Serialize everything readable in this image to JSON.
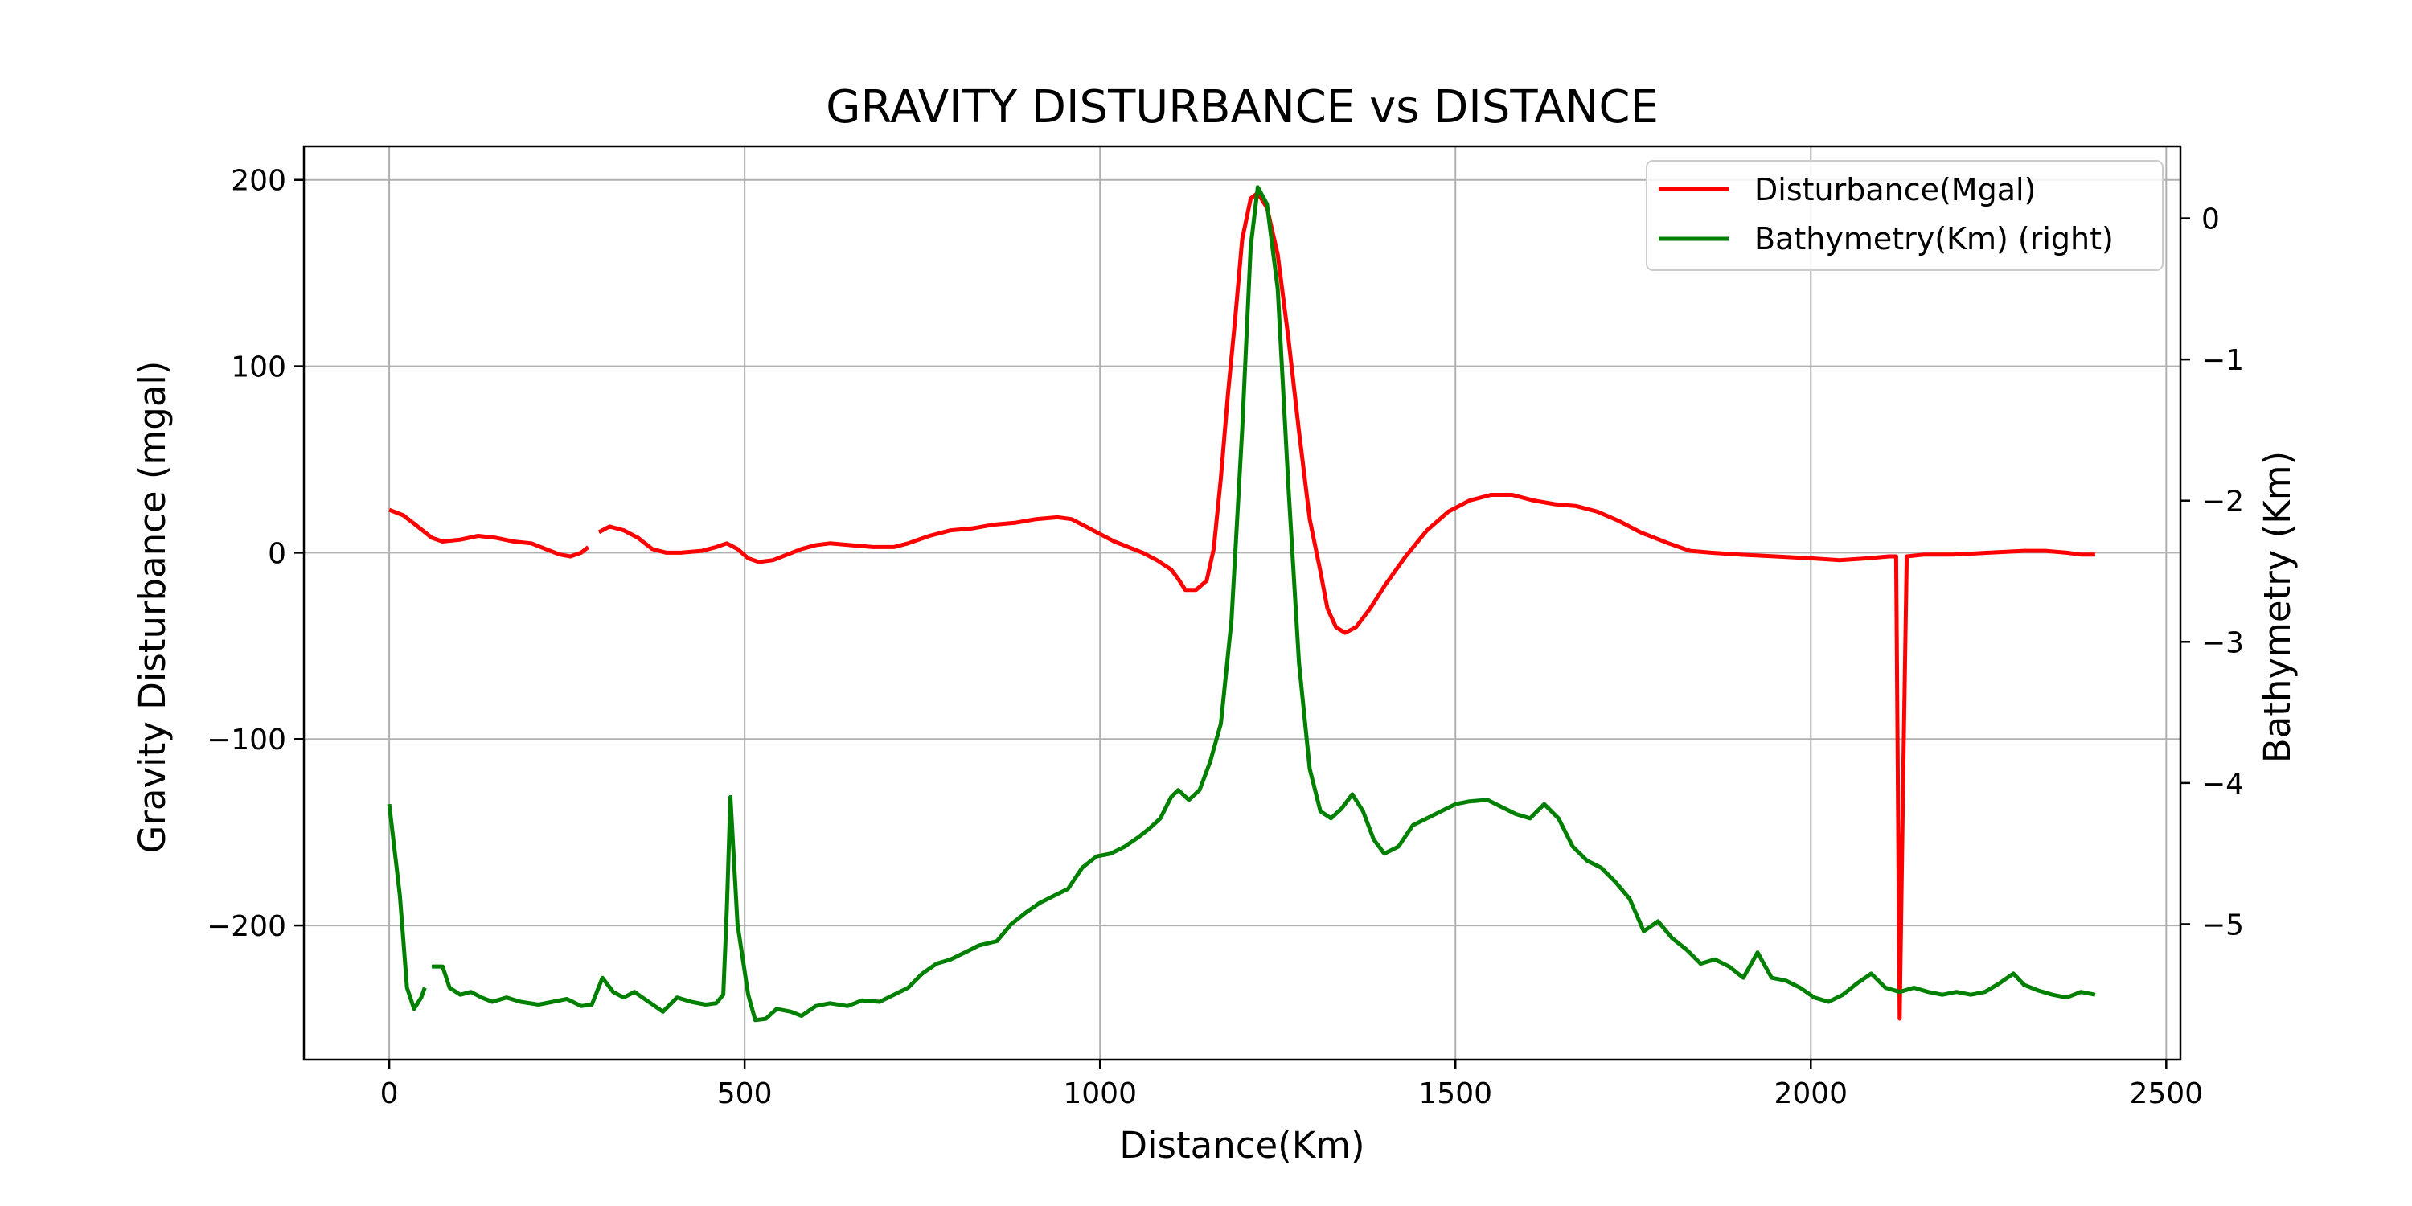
{
  "chart_data": {
    "type": "line",
    "title": "GRAVITY DISTURBANCE vs DISTANCE",
    "xlabel": "Distance(Km)",
    "ylabel": "Gravity Disturbance (mgal)",
    "y2label": "Bathymetry (Km)",
    "xlim": [
      -120,
      2520
    ],
    "ylim": [
      -272,
      218
    ],
    "y2lim": [
      -5.96,
      0.51
    ],
    "xticks": [
      0,
      500,
      1000,
      1500,
      2000,
      2500
    ],
    "yticks": [
      -200,
      -100,
      0,
      100,
      200
    ],
    "y2ticks": [
      -5,
      -4,
      -3,
      -2,
      -1,
      0
    ],
    "grid": true,
    "legend": "top-right",
    "series": [
      {
        "name": "Disturbance(Mgal)",
        "axis": "left",
        "color": "#ff0000",
        "points": [
          [
            0,
            23
          ],
          [
            20,
            20
          ],
          [
            40,
            14
          ],
          [
            60,
            8
          ],
          [
            75,
            6
          ],
          [
            100,
            7
          ],
          [
            125,
            9
          ],
          [
            150,
            8
          ],
          [
            175,
            6
          ],
          [
            200,
            5
          ],
          [
            220,
            2
          ],
          [
            240,
            -1
          ],
          [
            255,
            -2
          ],
          [
            270,
            0
          ],
          [
            280,
            3
          ],
          [
            285,
            null
          ],
          [
            295,
            11
          ],
          [
            310,
            14
          ],
          [
            330,
            12
          ],
          [
            350,
            8
          ],
          [
            370,
            2
          ],
          [
            390,
            0
          ],
          [
            410,
            0
          ],
          [
            440,
            1
          ],
          [
            460,
            3
          ],
          [
            475,
            5
          ],
          [
            490,
            2
          ],
          [
            505,
            -3
          ],
          [
            520,
            -5
          ],
          [
            540,
            -4
          ],
          [
            560,
            -1
          ],
          [
            580,
            2
          ],
          [
            600,
            4
          ],
          [
            620,
            5
          ],
          [
            650,
            4
          ],
          [
            680,
            3
          ],
          [
            710,
            3
          ],
          [
            730,
            5
          ],
          [
            760,
            9
          ],
          [
            790,
            12
          ],
          [
            820,
            13
          ],
          [
            850,
            15
          ],
          [
            880,
            16
          ],
          [
            910,
            18
          ],
          [
            940,
            19
          ],
          [
            960,
            18
          ],
          [
            980,
            14
          ],
          [
            1000,
            10
          ],
          [
            1020,
            6
          ],
          [
            1040,
            3
          ],
          [
            1060,
            0
          ],
          [
            1080,
            -4
          ],
          [
            1100,
            -9
          ],
          [
            1110,
            -14
          ],
          [
            1120,
            -20
          ],
          [
            1135,
            -20
          ],
          [
            1150,
            -15
          ],
          [
            1160,
            2
          ],
          [
            1170,
            40
          ],
          [
            1180,
            85
          ],
          [
            1190,
            125
          ],
          [
            1200,
            168
          ],
          [
            1212,
            190
          ],
          [
            1222,
            193
          ],
          [
            1235,
            185
          ],
          [
            1250,
            160
          ],
          [
            1265,
            115
          ],
          [
            1280,
            65
          ],
          [
            1295,
            18
          ],
          [
            1310,
            -10
          ],
          [
            1320,
            -30
          ],
          [
            1332,
            -40
          ],
          [
            1345,
            -43
          ],
          [
            1360,
            -40
          ],
          [
            1380,
            -30
          ],
          [
            1400,
            -18
          ],
          [
            1430,
            -2
          ],
          [
            1460,
            12
          ],
          [
            1490,
            22
          ],
          [
            1520,
            28
          ],
          [
            1550,
            31
          ],
          [
            1580,
            31
          ],
          [
            1610,
            28
          ],
          [
            1640,
            26
          ],
          [
            1670,
            25
          ],
          [
            1700,
            22
          ],
          [
            1730,
            17
          ],
          [
            1760,
            11
          ],
          [
            1800,
            5
          ],
          [
            1830,
            1
          ],
          [
            1860,
            0
          ],
          [
            1900,
            -1
          ],
          [
            1950,
            -2
          ],
          [
            2000,
            -3
          ],
          [
            2040,
            -4
          ],
          [
            2080,
            -3
          ],
          [
            2110,
            -2
          ],
          [
            2120,
            -2
          ],
          [
            2125,
            -250
          ],
          [
            2130,
            -120
          ],
          [
            2135,
            -2
          ],
          [
            2160,
            -1
          ],
          [
            2200,
            -1
          ],
          [
            2250,
            0
          ],
          [
            2300,
            1
          ],
          [
            2330,
            1
          ],
          [
            2360,
            0
          ],
          [
            2380,
            -1
          ],
          [
            2400,
            -1
          ]
        ]
      },
      {
        "name": "Bathymetry(Km) (right)",
        "axis": "right",
        "color": "#008000",
        "points": [
          [
            0,
            -4.15
          ],
          [
            15,
            -4.8
          ],
          [
            25,
            -5.45
          ],
          [
            35,
            -5.6
          ],
          [
            45,
            -5.52
          ],
          [
            50,
            -5.45
          ],
          [
            55,
            null
          ],
          [
            60,
            -5.3
          ],
          [
            75,
            -5.3
          ],
          [
            85,
            -5.45
          ],
          [
            100,
            -5.5
          ],
          [
            115,
            -5.48
          ],
          [
            130,
            -5.52
          ],
          [
            145,
            -5.55
          ],
          [
            165,
            -5.52
          ],
          [
            185,
            -5.55
          ],
          [
            210,
            -5.57
          ],
          [
            230,
            -5.55
          ],
          [
            250,
            -5.53
          ],
          [
            270,
            -5.58
          ],
          [
            285,
            -5.57
          ],
          [
            300,
            -5.38
          ],
          [
            315,
            -5.48
          ],
          [
            330,
            -5.52
          ],
          [
            345,
            -5.48
          ],
          [
            365,
            -5.55
          ],
          [
            385,
            -5.62
          ],
          [
            405,
            -5.52
          ],
          [
            425,
            -5.55
          ],
          [
            445,
            -5.57
          ],
          [
            460,
            -5.56
          ],
          [
            470,
            -5.5
          ],
          [
            475,
            -4.9
          ],
          [
            480,
            -4.1
          ],
          [
            490,
            -5.0
          ],
          [
            505,
            -5.5
          ],
          [
            515,
            -5.68
          ],
          [
            530,
            -5.67
          ],
          [
            545,
            -5.6
          ],
          [
            565,
            -5.62
          ],
          [
            580,
            -5.65
          ],
          [
            600,
            -5.58
          ],
          [
            620,
            -5.56
          ],
          [
            645,
            -5.58
          ],
          [
            665,
            -5.54
          ],
          [
            690,
            -5.55
          ],
          [
            710,
            -5.5
          ],
          [
            730,
            -5.45
          ],
          [
            750,
            -5.35
          ],
          [
            770,
            -5.28
          ],
          [
            790,
            -5.25
          ],
          [
            810,
            -5.2
          ],
          [
            830,
            -5.15
          ],
          [
            855,
            -5.12
          ],
          [
            875,
            -5.0
          ],
          [
            895,
            -4.92
          ],
          [
            915,
            -4.85
          ],
          [
            935,
            -4.8
          ],
          [
            955,
            -4.75
          ],
          [
            975,
            -4.6
          ],
          [
            995,
            -4.52
          ],
          [
            1015,
            -4.5
          ],
          [
            1035,
            -4.45
          ],
          [
            1055,
            -4.38
          ],
          [
            1070,
            -4.32
          ],
          [
            1085,
            -4.25
          ],
          [
            1100,
            -4.1
          ],
          [
            1110,
            -4.05
          ],
          [
            1125,
            -4.12
          ],
          [
            1140,
            -4.05
          ],
          [
            1155,
            -3.85
          ],
          [
            1170,
            -3.58
          ],
          [
            1185,
            -2.85
          ],
          [
            1200,
            -1.5
          ],
          [
            1212,
            -0.2
          ],
          [
            1222,
            0.22
          ],
          [
            1235,
            0.1
          ],
          [
            1250,
            -0.5
          ],
          [
            1265,
            -1.9
          ],
          [
            1280,
            -3.15
          ],
          [
            1295,
            -3.9
          ],
          [
            1310,
            -4.2
          ],
          [
            1325,
            -4.25
          ],
          [
            1340,
            -4.18
          ],
          [
            1355,
            -4.08
          ],
          [
            1370,
            -4.2
          ],
          [
            1385,
            -4.4
          ],
          [
            1400,
            -4.5
          ],
          [
            1420,
            -4.45
          ],
          [
            1440,
            -4.3
          ],
          [
            1460,
            -4.25
          ],
          [
            1480,
            -4.2
          ],
          [
            1500,
            -4.15
          ],
          [
            1520,
            -4.13
          ],
          [
            1545,
            -4.12
          ],
          [
            1565,
            -4.17
          ],
          [
            1585,
            -4.22
          ],
          [
            1605,
            -4.25
          ],
          [
            1625,
            -4.15
          ],
          [
            1645,
            -4.25
          ],
          [
            1665,
            -4.45
          ],
          [
            1685,
            -4.55
          ],
          [
            1705,
            -4.6
          ],
          [
            1725,
            -4.7
          ],
          [
            1745,
            -4.82
          ],
          [
            1765,
            -5.05
          ],
          [
            1785,
            -4.98
          ],
          [
            1805,
            -5.1
          ],
          [
            1825,
            -5.18
          ],
          [
            1845,
            -5.28
          ],
          [
            1865,
            -5.25
          ],
          [
            1885,
            -5.3
          ],
          [
            1905,
            -5.38
          ],
          [
            1925,
            -5.2
          ],
          [
            1945,
            -5.38
          ],
          [
            1965,
            -5.4
          ],
          [
            1985,
            -5.45
          ],
          [
            2005,
            -5.52
          ],
          [
            2025,
            -5.55
          ],
          [
            2045,
            -5.5
          ],
          [
            2065,
            -5.42
          ],
          [
            2085,
            -5.35
          ],
          [
            2105,
            -5.45
          ],
          [
            2125,
            -5.48
          ],
          [
            2145,
            -5.45
          ],
          [
            2165,
            -5.48
          ],
          [
            2185,
            -5.5
          ],
          [
            2205,
            -5.48
          ],
          [
            2225,
            -5.5
          ],
          [
            2245,
            -5.48
          ],
          [
            2265,
            -5.42
          ],
          [
            2285,
            -5.35
          ],
          [
            2300,
            -5.43
          ],
          [
            2320,
            -5.47
          ],
          [
            2340,
            -5.5
          ],
          [
            2360,
            -5.52
          ],
          [
            2380,
            -5.48
          ],
          [
            2400,
            -5.5
          ]
        ]
      }
    ]
  }
}
